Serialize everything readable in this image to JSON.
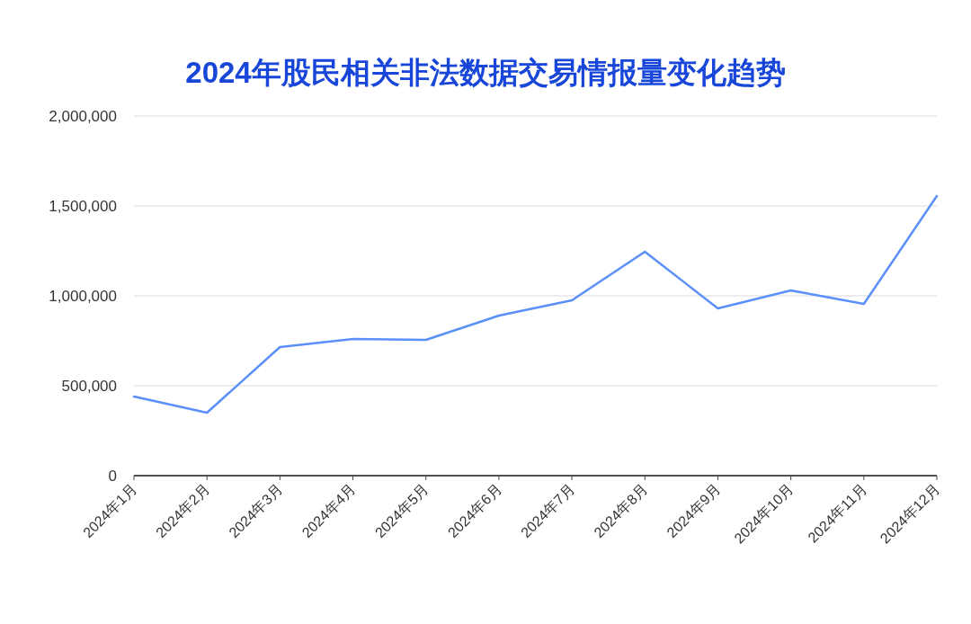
{
  "chart_data": {
    "type": "line",
    "title": "2024年股民相关非法数据交易情报量变化趋势",
    "categories": [
      "2024年1月",
      "2024年2月",
      "2024年3月",
      "2024年4月",
      "2024年5月",
      "2024年6月",
      "2024年7月",
      "2024年8月",
      "2024年9月",
      "2024年10月",
      "2024年11月",
      "2024年12月"
    ],
    "series": [
      {
        "color": "#5b8ff9",
        "values": [
          440000,
          350000,
          715000,
          760000,
          755000,
          890000,
          975000,
          1245000,
          930000,
          1030000,
          955000,
          1555000
        ]
      }
    ],
    "ylim": [
      0,
      2000000
    ],
    "yticks": [
      {
        "value": 0,
        "label": "0"
      },
      {
        "value": 500000,
        "label": "500,000"
      },
      {
        "value": 1000000,
        "label": "1,000,000"
      },
      {
        "value": 1500000,
        "label": "1,500,000"
      },
      {
        "value": 2000000,
        "label": "2,000,000"
      }
    ],
    "grid": "y",
    "marker": "none",
    "line_style": "solid"
  }
}
